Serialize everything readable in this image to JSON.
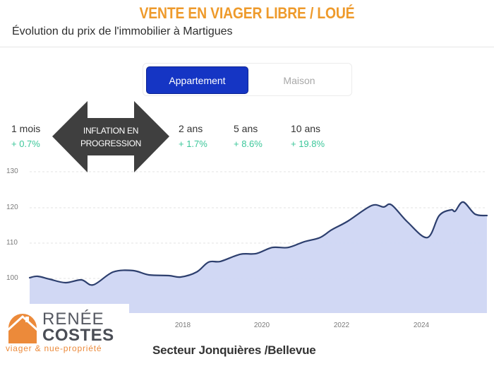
{
  "header": {
    "title": "VENTE EN VIAGER LIBRE / LOUÉ",
    "subtitle": "Évolution du prix de l'immobilier à Martigues"
  },
  "toggle": {
    "options": [
      {
        "label": "Appartement",
        "selected": true
      },
      {
        "label": "Maison",
        "selected": false
      }
    ]
  },
  "stats": [
    {
      "label": "1 mois",
      "value": "+ 0.7%"
    },
    {
      "label": "2 ans",
      "value": "+ 1.7%"
    },
    {
      "label": "5 ans",
      "value": "+ 8.6%"
    },
    {
      "label": "10 ans",
      "value": "+ 19.8%"
    }
  ],
  "annotation": {
    "line1": "INFLATION EN",
    "line2": "PROGRESSION"
  },
  "logo": {
    "line1": "RENÉE",
    "line2": "COSTES",
    "tagline": "viager & nue-propriété"
  },
  "sector": "Secteur  Jonquières /Bellevue",
  "colors": {
    "title": "#ee9a2b",
    "toggle_active": "#1535c4",
    "stat_positive": "#3cc79a",
    "line": "#2d3f6e",
    "area_fill": "#cfd6f3",
    "logo_orange": "#ec8a3a"
  },
  "chart_data": {
    "type": "area",
    "title": "Évolution du prix de l'immobilier à Martigues",
    "xlabel": "",
    "ylabel": "",
    "yticks": [
      100,
      110,
      120,
      130
    ],
    "xticks": [
      "2018",
      "2020",
      "2022",
      "2024"
    ],
    "ylim": [
      96,
      130
    ],
    "xlim": [
      2014.2,
      2025.7
    ],
    "grid": true,
    "legend": null,
    "x": [
      2014.2,
      2014.4,
      2014.7,
      2015.1,
      2015.5,
      2015.8,
      2016.3,
      2016.8,
      2017.2,
      2017.7,
      2018.0,
      2018.4,
      2018.7,
      2019.0,
      2019.5,
      2019.9,
      2020.3,
      2020.7,
      2021.1,
      2021.5,
      2021.8,
      2022.2,
      2022.8,
      2023.1,
      2023.3,
      2023.7,
      2024.2,
      2024.5,
      2024.8,
      2024.9,
      2025.1,
      2025.4,
      2025.7
    ],
    "series": [
      {
        "name": "Appartement",
        "values": [
          100.2,
          100.6,
          99.8,
          98.8,
          99.6,
          98.2,
          101.8,
          102.2,
          101.0,
          100.8,
          100.4,
          101.8,
          104.6,
          104.8,
          106.8,
          107.0,
          108.7,
          108.7,
          110.3,
          111.5,
          113.7,
          116.1,
          120.5,
          120.1,
          120.7,
          115.9,
          111.5,
          117.7,
          119.3,
          118.9,
          121.5,
          118.1,
          117.7
        ]
      }
    ],
    "stats": {
      "1 mois": 0.7,
      "2 ans": 1.7,
      "5 ans": 8.6,
      "10 ans": 19.8
    }
  }
}
